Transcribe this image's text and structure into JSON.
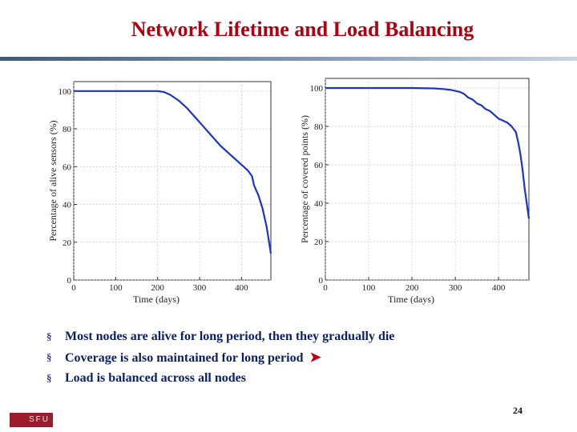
{
  "slide": {
    "title": "Network Lifetime and Load Balancing",
    "bullets": [
      "Most nodes are alive for long period, then they gradually die",
      "Coverage is also maintained for long period",
      "Load is balanced across all nodes"
    ],
    "bullet_marker": "§",
    "arrow_icon": "arrow-right-icon",
    "logo_text": "SFU",
    "page_number": "24",
    "colors": {
      "title": "#b0000f",
      "bullets": "#0a1f66",
      "line": "#1a33cc",
      "arrow": "#c00010",
      "logo": "#9d1c2c"
    }
  },
  "chart_data": [
    {
      "type": "line",
      "xlabel": "Time (days)",
      "ylabel": "Percentage of alive sensors (%)",
      "xlim": [
        0,
        470
      ],
      "ylim": [
        0,
        105
      ],
      "xticks": [
        0,
        100,
        200,
        300,
        400
      ],
      "yticks": [
        0,
        20,
        40,
        60,
        80,
        100
      ],
      "grid": true,
      "series": [
        {
          "x": [
            0,
            50,
            100,
            150,
            200,
            215,
            230,
            250,
            270,
            290,
            310,
            330,
            350,
            370,
            385,
            395,
            405,
            415,
            425,
            430,
            440,
            450,
            460,
            470
          ],
          "y": [
            100,
            100,
            100,
            100,
            100,
            99.5,
            98,
            95,
            91,
            86,
            81,
            76,
            71,
            67,
            64,
            62,
            60,
            58,
            55,
            50,
            45,
            38,
            28,
            14
          ]
        }
      ]
    },
    {
      "type": "line",
      "xlabel": "Time (days)",
      "ylabel": "Percentage of covered points (%)",
      "xlim": [
        0,
        470
      ],
      "ylim": [
        0,
        105
      ],
      "xticks": [
        0,
        100,
        200,
        300,
        400
      ],
      "yticks": [
        0,
        20,
        40,
        60,
        80,
        100
      ],
      "grid": true,
      "series": [
        {
          "x": [
            0,
            50,
            100,
            150,
            200,
            250,
            270,
            290,
            300,
            310,
            320,
            330,
            340,
            350,
            360,
            370,
            380,
            390,
            400,
            410,
            420,
            430,
            440,
            445,
            450,
            455,
            460,
            465,
            470
          ],
          "y": [
            100,
            100,
            100,
            100,
            100,
            99.8,
            99.5,
            99,
            98.5,
            98,
            97,
            95,
            94,
            92,
            91,
            89,
            88,
            86,
            84,
            83,
            82,
            80,
            77,
            72,
            66,
            58,
            48,
            40,
            32
          ]
        }
      ]
    }
  ]
}
